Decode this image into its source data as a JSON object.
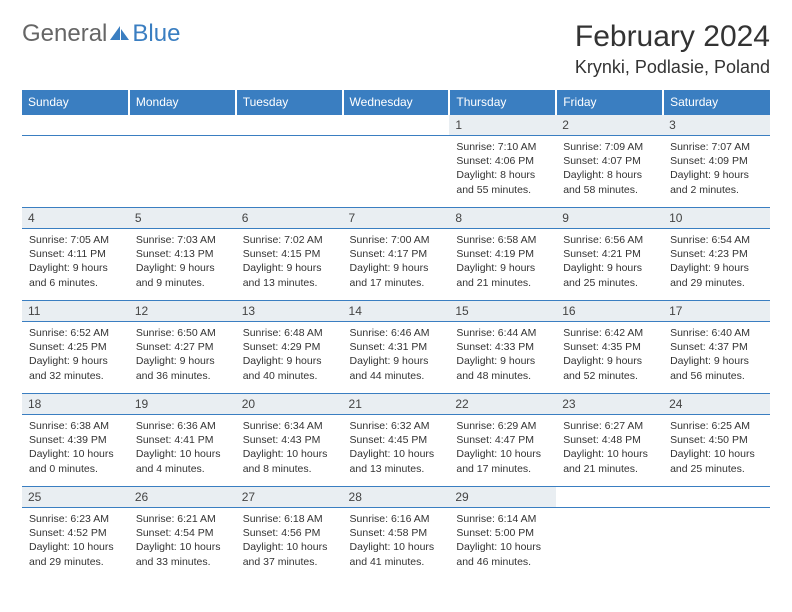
{
  "brand": {
    "part1": "General",
    "part2": "Blue"
  },
  "title": "February 2024",
  "location": "Krynki, Podlasie, Poland",
  "colors": {
    "primary": "#3a7ec1",
    "dayNumBg": "#e9eef2",
    "text": "#333333"
  },
  "weekdays": [
    "Sunday",
    "Monday",
    "Tuesday",
    "Wednesday",
    "Thursday",
    "Friday",
    "Saturday"
  ],
  "weeks": [
    [
      null,
      null,
      null,
      null,
      {
        "num": "1",
        "sunrise": "Sunrise: 7:10 AM",
        "sunset": "Sunset: 4:06 PM",
        "day1": "Daylight: 8 hours",
        "day2": "and 55 minutes."
      },
      {
        "num": "2",
        "sunrise": "Sunrise: 7:09 AM",
        "sunset": "Sunset: 4:07 PM",
        "day1": "Daylight: 8 hours",
        "day2": "and 58 minutes."
      },
      {
        "num": "3",
        "sunrise": "Sunrise: 7:07 AM",
        "sunset": "Sunset: 4:09 PM",
        "day1": "Daylight: 9 hours",
        "day2": "and 2 minutes."
      }
    ],
    [
      {
        "num": "4",
        "sunrise": "Sunrise: 7:05 AM",
        "sunset": "Sunset: 4:11 PM",
        "day1": "Daylight: 9 hours",
        "day2": "and 6 minutes."
      },
      {
        "num": "5",
        "sunrise": "Sunrise: 7:03 AM",
        "sunset": "Sunset: 4:13 PM",
        "day1": "Daylight: 9 hours",
        "day2": "and 9 minutes."
      },
      {
        "num": "6",
        "sunrise": "Sunrise: 7:02 AM",
        "sunset": "Sunset: 4:15 PM",
        "day1": "Daylight: 9 hours",
        "day2": "and 13 minutes."
      },
      {
        "num": "7",
        "sunrise": "Sunrise: 7:00 AM",
        "sunset": "Sunset: 4:17 PM",
        "day1": "Daylight: 9 hours",
        "day2": "and 17 minutes."
      },
      {
        "num": "8",
        "sunrise": "Sunrise: 6:58 AM",
        "sunset": "Sunset: 4:19 PM",
        "day1": "Daylight: 9 hours",
        "day2": "and 21 minutes."
      },
      {
        "num": "9",
        "sunrise": "Sunrise: 6:56 AM",
        "sunset": "Sunset: 4:21 PM",
        "day1": "Daylight: 9 hours",
        "day2": "and 25 minutes."
      },
      {
        "num": "10",
        "sunrise": "Sunrise: 6:54 AM",
        "sunset": "Sunset: 4:23 PM",
        "day1": "Daylight: 9 hours",
        "day2": "and 29 minutes."
      }
    ],
    [
      {
        "num": "11",
        "sunrise": "Sunrise: 6:52 AM",
        "sunset": "Sunset: 4:25 PM",
        "day1": "Daylight: 9 hours",
        "day2": "and 32 minutes."
      },
      {
        "num": "12",
        "sunrise": "Sunrise: 6:50 AM",
        "sunset": "Sunset: 4:27 PM",
        "day1": "Daylight: 9 hours",
        "day2": "and 36 minutes."
      },
      {
        "num": "13",
        "sunrise": "Sunrise: 6:48 AM",
        "sunset": "Sunset: 4:29 PM",
        "day1": "Daylight: 9 hours",
        "day2": "and 40 minutes."
      },
      {
        "num": "14",
        "sunrise": "Sunrise: 6:46 AM",
        "sunset": "Sunset: 4:31 PM",
        "day1": "Daylight: 9 hours",
        "day2": "and 44 minutes."
      },
      {
        "num": "15",
        "sunrise": "Sunrise: 6:44 AM",
        "sunset": "Sunset: 4:33 PM",
        "day1": "Daylight: 9 hours",
        "day2": "and 48 minutes."
      },
      {
        "num": "16",
        "sunrise": "Sunrise: 6:42 AM",
        "sunset": "Sunset: 4:35 PM",
        "day1": "Daylight: 9 hours",
        "day2": "and 52 minutes."
      },
      {
        "num": "17",
        "sunrise": "Sunrise: 6:40 AM",
        "sunset": "Sunset: 4:37 PM",
        "day1": "Daylight: 9 hours",
        "day2": "and 56 minutes."
      }
    ],
    [
      {
        "num": "18",
        "sunrise": "Sunrise: 6:38 AM",
        "sunset": "Sunset: 4:39 PM",
        "day1": "Daylight: 10 hours",
        "day2": "and 0 minutes."
      },
      {
        "num": "19",
        "sunrise": "Sunrise: 6:36 AM",
        "sunset": "Sunset: 4:41 PM",
        "day1": "Daylight: 10 hours",
        "day2": "and 4 minutes."
      },
      {
        "num": "20",
        "sunrise": "Sunrise: 6:34 AM",
        "sunset": "Sunset: 4:43 PM",
        "day1": "Daylight: 10 hours",
        "day2": "and 8 minutes."
      },
      {
        "num": "21",
        "sunrise": "Sunrise: 6:32 AM",
        "sunset": "Sunset: 4:45 PM",
        "day1": "Daylight: 10 hours",
        "day2": "and 13 minutes."
      },
      {
        "num": "22",
        "sunrise": "Sunrise: 6:29 AM",
        "sunset": "Sunset: 4:47 PM",
        "day1": "Daylight: 10 hours",
        "day2": "and 17 minutes."
      },
      {
        "num": "23",
        "sunrise": "Sunrise: 6:27 AM",
        "sunset": "Sunset: 4:48 PM",
        "day1": "Daylight: 10 hours",
        "day2": "and 21 minutes."
      },
      {
        "num": "24",
        "sunrise": "Sunrise: 6:25 AM",
        "sunset": "Sunset: 4:50 PM",
        "day1": "Daylight: 10 hours",
        "day2": "and 25 minutes."
      }
    ],
    [
      {
        "num": "25",
        "sunrise": "Sunrise: 6:23 AM",
        "sunset": "Sunset: 4:52 PM",
        "day1": "Daylight: 10 hours",
        "day2": "and 29 minutes."
      },
      {
        "num": "26",
        "sunrise": "Sunrise: 6:21 AM",
        "sunset": "Sunset: 4:54 PM",
        "day1": "Daylight: 10 hours",
        "day2": "and 33 minutes."
      },
      {
        "num": "27",
        "sunrise": "Sunrise: 6:18 AM",
        "sunset": "Sunset: 4:56 PM",
        "day1": "Daylight: 10 hours",
        "day2": "and 37 minutes."
      },
      {
        "num": "28",
        "sunrise": "Sunrise: 6:16 AM",
        "sunset": "Sunset: 4:58 PM",
        "day1": "Daylight: 10 hours",
        "day2": "and 41 minutes."
      },
      {
        "num": "29",
        "sunrise": "Sunrise: 6:14 AM",
        "sunset": "Sunset: 5:00 PM",
        "day1": "Daylight: 10 hours",
        "day2": "and 46 minutes."
      },
      null,
      null
    ]
  ]
}
